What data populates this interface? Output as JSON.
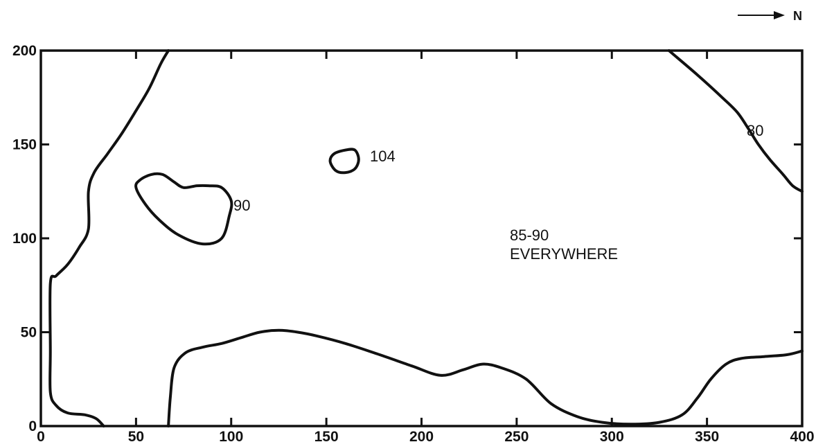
{
  "north_arrow": {
    "label": "N"
  },
  "axes": {
    "x_ticks": [
      "0",
      "50",
      "100",
      "150",
      "200",
      "250",
      "300",
      "350",
      "400"
    ],
    "y_ticks": [
      "0",
      "50",
      "100",
      "150",
      "200"
    ],
    "xlim": [
      0,
      400
    ],
    "ylim": [
      0,
      200
    ]
  },
  "contour_labels": {
    "loop_90": "90",
    "loop_104": "104",
    "line_80": "80",
    "note_line1": "85-90",
    "note_line2": "EVERYWHERE"
  },
  "chart_data": {
    "type": "contour",
    "xlim": [
      0,
      400
    ],
    "ylim": [
      0,
      200
    ],
    "contours": [
      {
        "label": "104",
        "closed": true,
        "points": [
          [
            152,
            141
          ],
          [
            154,
            145
          ],
          [
            160,
            147
          ],
          [
            165,
            147
          ],
          [
            167,
            142
          ],
          [
            165,
            137
          ],
          [
            160,
            135
          ],
          [
            155,
            136
          ],
          [
            152,
            141
          ]
        ]
      },
      {
        "label": "90",
        "closed": true,
        "points": [
          [
            50,
            127
          ],
          [
            52,
            131
          ],
          [
            58,
            134
          ],
          [
            64,
            134
          ],
          [
            70,
            130
          ],
          [
            75,
            127
          ],
          [
            82,
            128
          ],
          [
            88,
            128
          ],
          [
            95,
            127
          ],
          [
            100,
            120
          ],
          [
            99,
            112
          ],
          [
            95,
            100
          ],
          [
            85,
            97
          ],
          [
            72,
            102
          ],
          [
            62,
            110
          ],
          [
            55,
            118
          ],
          [
            50,
            127
          ]
        ]
      },
      {
        "label": "80",
        "closed": false,
        "points": [
          [
            330,
            200
          ],
          [
            345,
            187
          ],
          [
            358,
            175
          ],
          [
            366,
            167
          ],
          [
            372,
            158
          ],
          [
            377,
            150
          ],
          [
            383,
            142
          ],
          [
            390,
            134
          ],
          [
            395,
            128
          ],
          [
            400,
            125
          ]
        ]
      },
      {
        "label": "",
        "closed": false,
        "points": [
          [
            33,
            0
          ],
          [
            29,
            4
          ],
          [
            23,
            6
          ],
          [
            14,
            7
          ],
          [
            8,
            11
          ],
          [
            5,
            18
          ],
          [
            5,
            40
          ],
          [
            5,
            76
          ],
          [
            8,
            80
          ],
          [
            14,
            86
          ],
          [
            20,
            95
          ],
          [
            25,
            105
          ],
          [
            25,
            125
          ],
          [
            28,
            135
          ],
          [
            35,
            145
          ],
          [
            42,
            155
          ],
          [
            50,
            168
          ],
          [
            57,
            180
          ],
          [
            63,
            193
          ],
          [
            67,
            200
          ]
        ]
      },
      {
        "label": "",
        "closed": false,
        "points": [
          [
            67,
            0
          ],
          [
            68,
            15
          ],
          [
            70,
            31
          ],
          [
            76,
            39
          ],
          [
            85,
            42
          ],
          [
            95,
            44
          ],
          [
            105,
            47
          ],
          [
            115,
            50
          ],
          [
            125,
            51
          ],
          [
            135,
            50
          ],
          [
            145,
            48
          ],
          [
            160,
            44
          ],
          [
            178,
            38
          ],
          [
            195,
            32
          ],
          [
            210,
            27
          ],
          [
            222,
            30
          ],
          [
            232,
            33
          ],
          [
            242,
            31
          ],
          [
            255,
            25
          ],
          [
            268,
            12
          ],
          [
            282,
            5
          ],
          [
            295,
            2
          ],
          [
            310,
            1
          ],
          [
            325,
            2
          ],
          [
            337,
            6
          ],
          [
            345,
            15
          ],
          [
            352,
            25
          ],
          [
            360,
            33
          ],
          [
            368,
            36
          ],
          [
            380,
            37
          ],
          [
            392,
            38
          ],
          [
            400,
            40
          ]
        ]
      }
    ],
    "annotations": [
      "104",
      "90",
      "80",
      "85-90 EVERYWHERE"
    ]
  }
}
